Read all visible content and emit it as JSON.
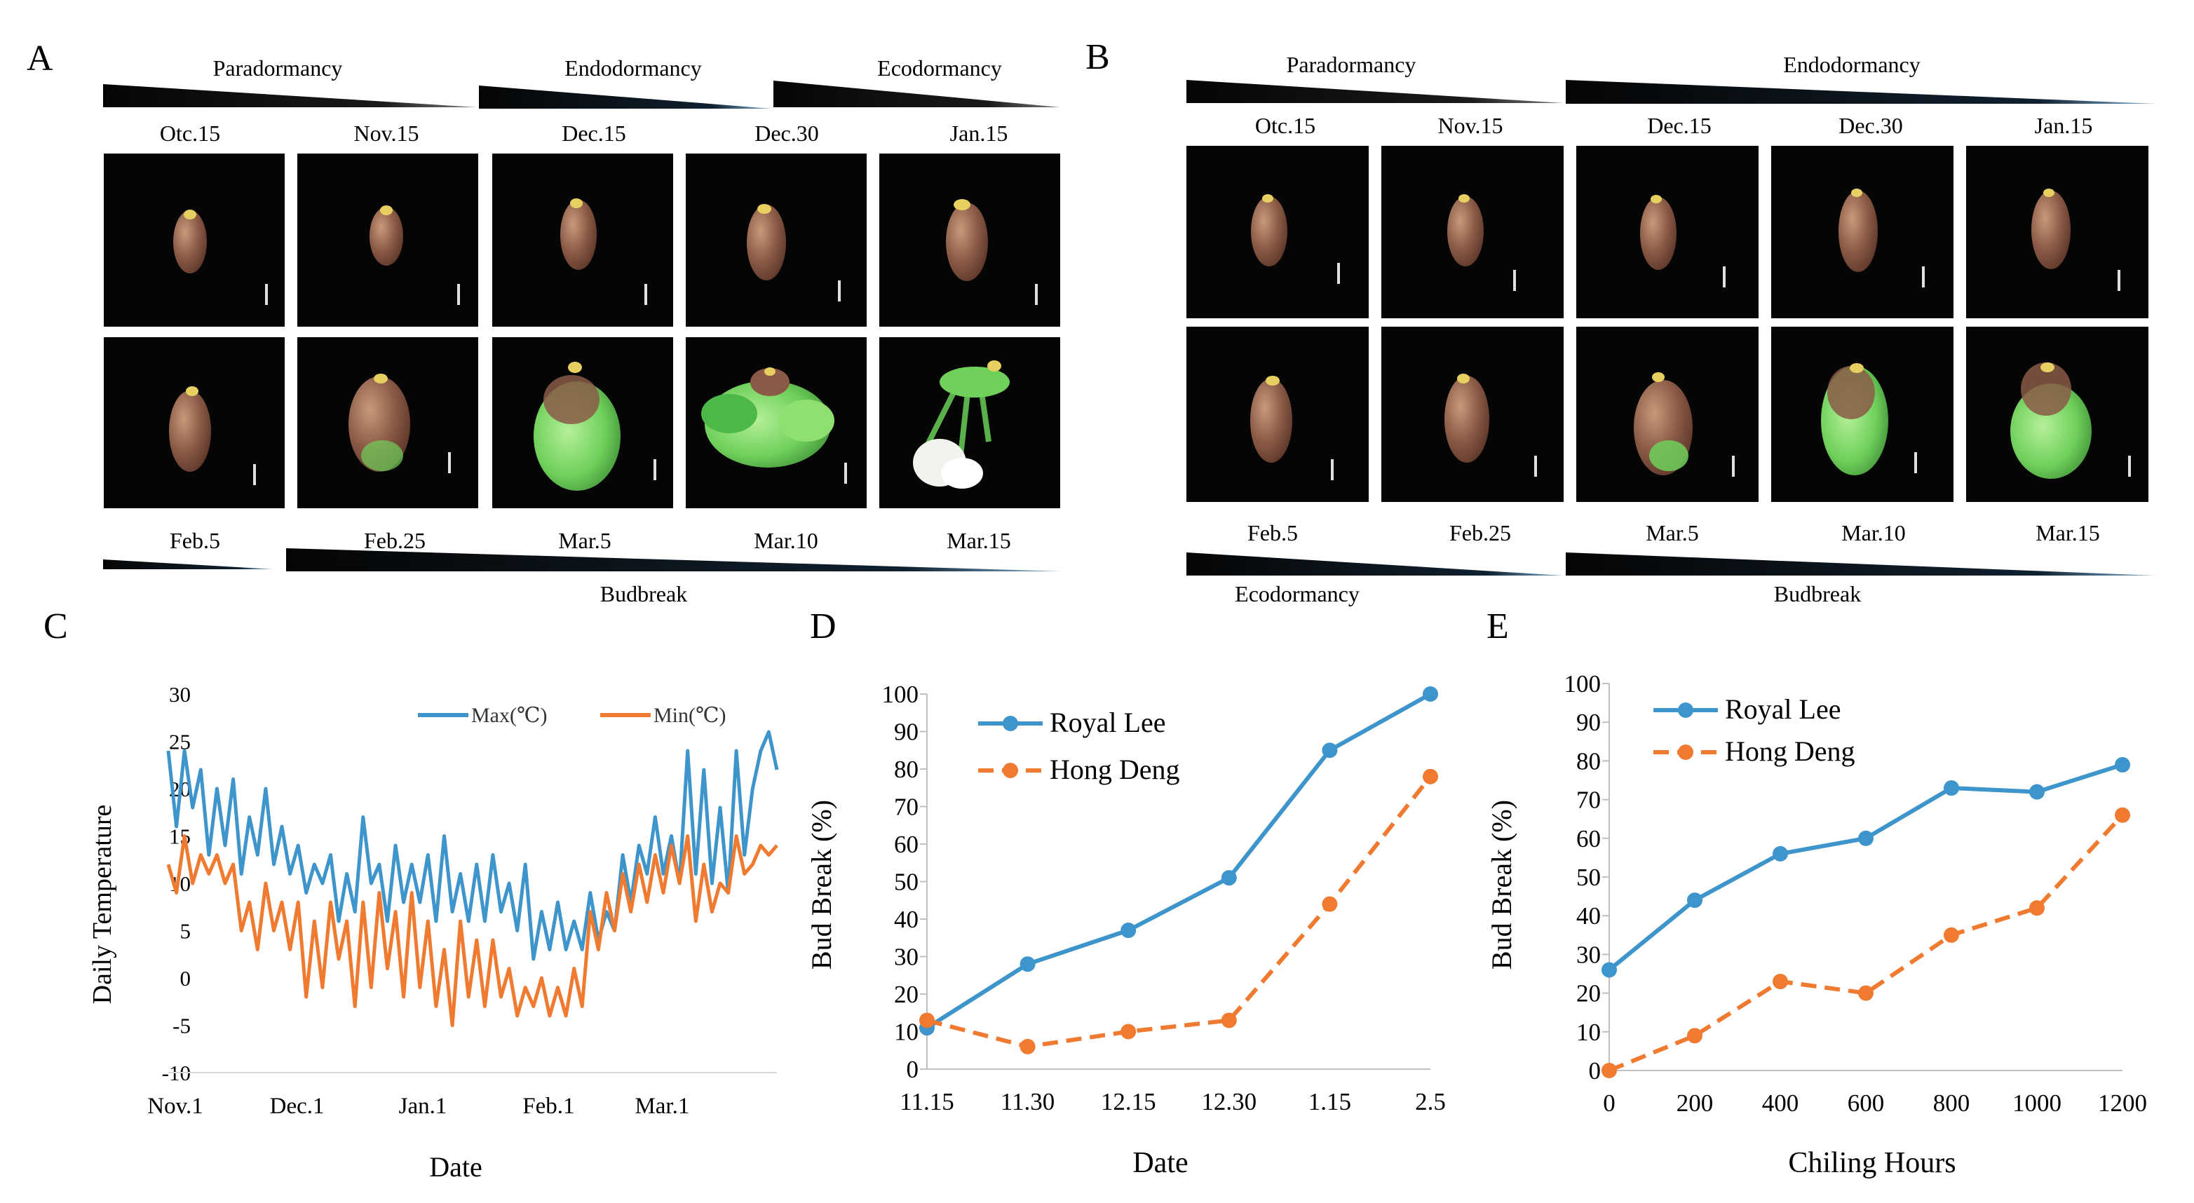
{
  "panels": {
    "A": {
      "letter": "A",
      "stages_top": [
        "Paradormancy",
        "Endodormancy",
        "Ecodormancy"
      ],
      "dates_top": [
        "Otc.15",
        "Nov.15",
        "Dec.15",
        "Dec.30",
        "Jan.15"
      ],
      "dates_bottom": [
        "Feb.5",
        "Feb.25",
        "Mar.5",
        "Mar.10",
        "Mar.15"
      ],
      "stage_bottom": "Budbreak"
    },
    "B": {
      "letter": "B",
      "stages_top": [
        "Paradormancy",
        "Endodormancy"
      ],
      "dates_top": [
        "Otc.15",
        "Nov.15",
        "Dec.15",
        "Dec.30",
        "Jan.15"
      ],
      "dates_bottom": [
        "Feb.5",
        "Feb.25",
        "Mar.5",
        "Mar.10",
        "Mar.15"
      ],
      "stages_bottom": [
        "Ecodormancy",
        "Budbreak"
      ]
    }
  },
  "colors": {
    "blue": "#3d95cc",
    "orange": "#ef7a30",
    "photo_bg": "#050505",
    "bud_brown": "#8a5a46",
    "bud_green": "#6fd05a",
    "bud_tip": "#e8d060"
  },
  "chart_data": [
    {
      "panel": "C",
      "type": "line",
      "title": "",
      "xlabel": "Date",
      "ylabel": "Daily  Temperature",
      "x_ticks": [
        "Nov.1",
        "Dec.1",
        "Jan.1",
        "Feb.1",
        "Mar.1"
      ],
      "x_tick_days": [
        0,
        30,
        61,
        92,
        120
      ],
      "ylim": [
        -10,
        30
      ],
      "y_ticks": [
        -10,
        -5,
        0,
        5,
        10,
        15,
        20,
        25,
        30
      ],
      "legend": "top-right",
      "series": [
        {
          "name": "Max(℃)",
          "color": "#3d95cc",
          "x": [
            0,
            2,
            4,
            6,
            8,
            10,
            12,
            14,
            16,
            18,
            20,
            22,
            24,
            26,
            28,
            30,
            32,
            34,
            36,
            38,
            40,
            42,
            44,
            46,
            48,
            50,
            52,
            54,
            56,
            58,
            60,
            62,
            64,
            66,
            68,
            70,
            72,
            74,
            76,
            78,
            80,
            82,
            84,
            86,
            88,
            90,
            92,
            94,
            96,
            98,
            100,
            102,
            104,
            106,
            108,
            110,
            112,
            114,
            116,
            118,
            120,
            122,
            124,
            126,
            128,
            130,
            132,
            134,
            136,
            138,
            140,
            142,
            144,
            146,
            148,
            150
          ],
          "values": [
            24,
            16,
            24,
            18,
            22,
            13,
            20,
            14,
            21,
            11,
            17,
            13,
            20,
            12,
            16,
            11,
            14,
            9,
            12,
            10,
            13,
            6,
            11,
            7,
            17,
            10,
            12,
            6,
            14,
            8,
            12,
            8,
            13,
            6,
            15,
            7,
            11,
            6,
            12,
            6,
            13,
            7,
            10,
            5,
            12,
            2,
            7,
            3,
            8,
            3,
            6,
            3,
            9,
            4,
            7,
            5,
            13,
            8,
            14,
            11,
            17,
            11,
            15,
            10,
            24,
            11,
            22,
            10,
            18,
            9,
            24,
            13,
            20,
            24,
            26,
            22
          ]
        },
        {
          "name": "Min(℃)",
          "color": "#ef7a30",
          "x": [
            0,
            2,
            4,
            6,
            8,
            10,
            12,
            14,
            16,
            18,
            20,
            22,
            24,
            26,
            28,
            30,
            32,
            34,
            36,
            38,
            40,
            42,
            44,
            46,
            48,
            50,
            52,
            54,
            56,
            58,
            60,
            62,
            64,
            66,
            68,
            70,
            72,
            74,
            76,
            78,
            80,
            82,
            84,
            86,
            88,
            90,
            92,
            94,
            96,
            98,
            100,
            102,
            104,
            106,
            108,
            110,
            112,
            114,
            116,
            118,
            120,
            122,
            124,
            126,
            128,
            130,
            132,
            134,
            136,
            138,
            140,
            142,
            144,
            146,
            148,
            150
          ],
          "values": [
            12,
            9,
            15,
            10,
            13,
            11,
            13,
            10,
            12,
            5,
            8,
            3,
            10,
            5,
            8,
            3,
            8,
            -2,
            6,
            -1,
            8,
            2,
            6,
            -3,
            8,
            -1,
            9,
            1,
            7,
            -2,
            9,
            -1,
            6,
            -3,
            3,
            -5,
            6,
            -2,
            4,
            -3,
            4,
            -2,
            1,
            -4,
            -1,
            -3,
            0,
            -4,
            -1,
            -4,
            1,
            -3,
            7,
            3,
            9,
            5,
            11,
            7,
            12,
            8,
            13,
            9,
            14,
            10,
            15,
            6,
            12,
            7,
            10,
            9,
            15,
            11,
            12,
            14,
            13,
            14
          ]
        }
      ]
    },
    {
      "panel": "D",
      "type": "line",
      "title": "",
      "xlabel": "Date",
      "ylabel": "Bud Break (%)",
      "categories": [
        "11.15",
        "11.30",
        "12.15",
        "12.30",
        "1.15",
        "2.5"
      ],
      "ylim": [
        0,
        100
      ],
      "y_ticks": [
        0,
        10,
        20,
        30,
        40,
        50,
        60,
        70,
        80,
        90,
        100
      ],
      "legend": "top-left",
      "series": [
        {
          "name": "Royal Lee",
          "color": "#3d95cc",
          "style": "solid",
          "values": [
            11,
            28,
            37,
            51,
            85,
            100
          ]
        },
        {
          "name": "Hong Deng",
          "color": "#ef7a30",
          "style": "dashed",
          "values": [
            13,
            6,
            10,
            13,
            44,
            78
          ]
        }
      ]
    },
    {
      "panel": "E",
      "type": "line",
      "title": "",
      "xlabel": "Chiling Hours",
      "ylabel": "Bud Break (%)",
      "categories": [
        "0",
        "200",
        "400",
        "600",
        "800",
        "1000",
        "1200"
      ],
      "ylim": [
        0,
        100
      ],
      "y_ticks": [
        0,
        10,
        20,
        30,
        40,
        50,
        60,
        70,
        80,
        90,
        100
      ],
      "legend": "top-left",
      "series": [
        {
          "name": "Royal Lee",
          "color": "#3d95cc",
          "style": "solid",
          "values": [
            26,
            44,
            56,
            60,
            73,
            72,
            79
          ]
        },
        {
          "name": "Hong Deng",
          "color": "#ef7a30",
          "style": "dashed",
          "values": [
            0,
            9,
            23,
            20,
            35,
            42,
            66
          ]
        }
      ]
    }
  ]
}
